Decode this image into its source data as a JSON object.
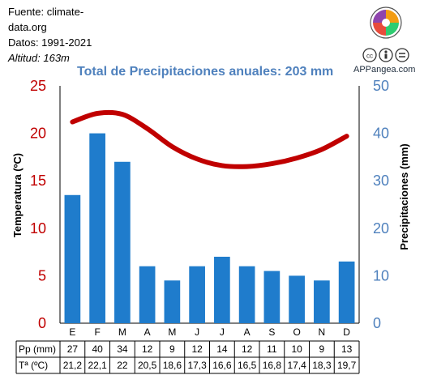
{
  "source": {
    "line1": "Fuente: climate-",
    "line2": "data.org",
    "period": "Datos: 1991-2021",
    "altitude": "Altitud: 163m"
  },
  "brand": "APPangea.com",
  "title": "Total de Precipitaciones anuales: 203 mm",
  "colors": {
    "temperature": "#c00000",
    "precipitation": "#1f7ccc",
    "axis_right": "#4f81bd"
  },
  "chart_data": {
    "type": "bar",
    "title": "Total de Precipitaciones anuales: 203 mm",
    "categories": [
      "E",
      "F",
      "M",
      "A",
      "M",
      "J",
      "J",
      "A",
      "S",
      "O",
      "N",
      "D"
    ],
    "y_left": {
      "label": "Temperatura (ºC)",
      "range": [
        0,
        25
      ],
      "ticks": [
        0,
        5,
        10,
        15,
        20,
        25
      ]
    },
    "y_right": {
      "label": "Precipitaciones (mm)",
      "range": [
        0,
        50
      ],
      "ticks": [
        0,
        10,
        20,
        30,
        40,
        50
      ]
    },
    "series": [
      {
        "name": "Pp (mm)",
        "type": "bar",
        "axis": "right",
        "values": [
          27,
          40,
          34,
          12,
          9,
          12,
          14,
          12,
          11,
          10,
          9,
          13
        ]
      },
      {
        "name": "Tª (ºC)",
        "type": "line",
        "axis": "left",
        "values": [
          21.2,
          22.1,
          22,
          20.5,
          18.6,
          17.3,
          16.6,
          16.5,
          16.8,
          17.4,
          18.3,
          19.7
        ]
      }
    ],
    "table": {
      "rows": [
        {
          "label": "Pp (mm)",
          "values": [
            "27",
            "40",
            "34",
            "12",
            "9",
            "12",
            "14",
            "12",
            "11",
            "10",
            "9",
            "13"
          ]
        },
        {
          "label": "Tª (ºC)",
          "values": [
            "21,2",
            "22,1",
            "22",
            "20,5",
            "18,6",
            "17,3",
            "16,6",
            "16,5",
            "16,8",
            "17,4",
            "18,3",
            "19,7"
          ]
        }
      ]
    },
    "grid": false,
    "legend": "table-bottom"
  }
}
